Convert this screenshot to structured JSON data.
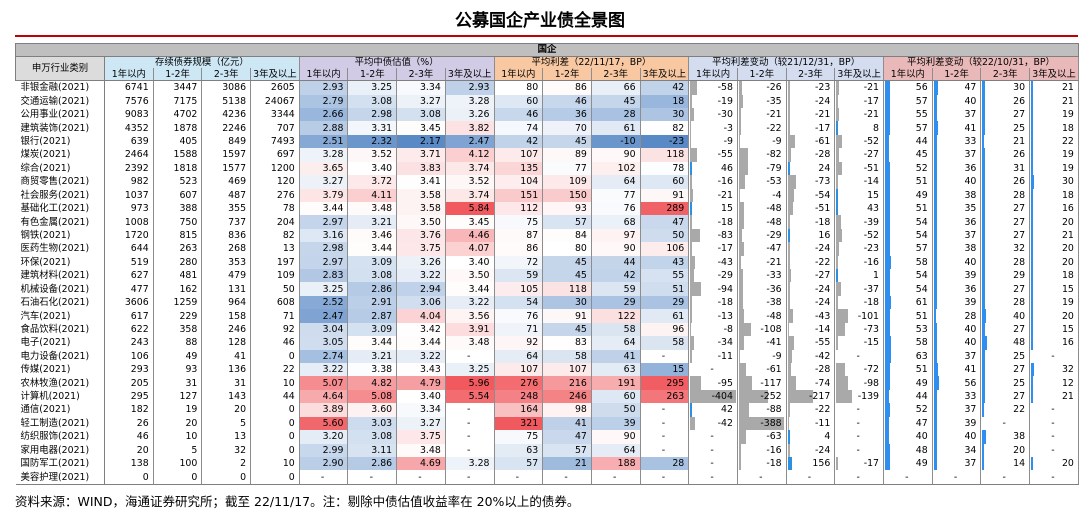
{
  "title": "公募国企产业债全景图",
  "band_label": "国企",
  "industry_header": "申万行业类别",
  "groups": [
    {
      "label": "存续债券规模（亿元）",
      "color": "#cde7f5"
    },
    {
      "label": "平均中债估值（%）",
      "color": "#d2cbe6"
    },
    {
      "label": "平均利差（22/11/17，BP）",
      "color": "#f8c8a2"
    },
    {
      "label": "平均利差变动（较21/12/31，BP）",
      "color": "#d3ddef"
    },
    {
      "label": "平均利差变动（较22/10/31，BP）",
      "color": "#e9b8b8"
    }
  ],
  "sub_headers": [
    "1年以内",
    "1-2年",
    "2-3年",
    "3年及以上"
  ],
  "rows": [
    {
      "name": "非银金融(2021)",
      "scale": [
        "6741",
        "3447",
        "3086",
        "2605"
      ],
      "val": [
        "2.93",
        "3.25",
        "3.34",
        "2.93"
      ],
      "spr": [
        "80",
        "86",
        "66",
        "42"
      ],
      "chg1": [
        "-58",
        "-26",
        "-23",
        "-21"
      ],
      "chg2": [
        "56",
        "47",
        "30",
        "21"
      ]
    },
    {
      "name": "交通运输(2021)",
      "scale": [
        "7576",
        "7175",
        "5138",
        "24067"
      ],
      "val": [
        "2.79",
        "3.08",
        "3.27",
        "3.28"
      ],
      "spr": [
        "60",
        "46",
        "45",
        "18"
      ],
      "chg1": [
        "-19",
        "-35",
        "-24",
        "-17"
      ],
      "chg2": [
        "57",
        "40",
        "26",
        "21"
      ]
    },
    {
      "name": "公用事业(2021)",
      "scale": [
        "9083",
        "4702",
        "4236",
        "3344"
      ],
      "val": [
        "2.66",
        "2.98",
        "3.08",
        "3.26"
      ],
      "spr": [
        "46",
        "36",
        "28",
        "30"
      ],
      "chg1": [
        "-30",
        "-21",
        "-21",
        "-21"
      ],
      "chg2": [
        "55",
        "37",
        "27",
        "19"
      ]
    },
    {
      "name": "建筑装饰(2021)",
      "scale": [
        "4352",
        "1878",
        "2246",
        "707"
      ],
      "val": [
        "2.88",
        "3.31",
        "3.45",
        "3.82"
      ],
      "spr": [
        "74",
        "70",
        "61",
        "82"
      ],
      "chg1": [
        "-3",
        "-22",
        "-17",
        "8"
      ],
      "chg2": [
        "57",
        "41",
        "25",
        "18"
      ]
    },
    {
      "name": "银行(2021)",
      "scale": [
        "639",
        "405",
        "849",
        "7493"
      ],
      "val": [
        "2.51",
        "2.32",
        "2.17",
        "2.47"
      ],
      "spr": [
        "42",
        "45",
        "-10",
        "-23"
      ],
      "chg1": [
        "-9",
        "-9",
        "-61",
        "-52"
      ],
      "chg2": [
        "44",
        "33",
        "21",
        "22"
      ]
    },
    {
      "name": "煤炭(2021)",
      "scale": [
        "2464",
        "1588",
        "1597",
        "697"
      ],
      "val": [
        "3.28",
        "3.52",
        "3.71",
        "4.12"
      ],
      "spr": [
        "107",
        "89",
        "90",
        "118"
      ],
      "chg1": [
        "-55",
        "-82",
        "-28",
        "-27"
      ],
      "chg2": [
        "45",
        "37",
        "26",
        "19"
      ]
    },
    {
      "name": "综合(2021)",
      "scale": [
        "2392",
        "1818",
        "1577",
        "1200"
      ],
      "val": [
        "3.65",
        "3.40",
        "3.83",
        "3.74"
      ],
      "spr": [
        "135",
        "77",
        "102",
        "78"
      ],
      "chg1": [
        "46",
        "-79",
        "24",
        "-51"
      ],
      "chg2": [
        "52",
        "36",
        "31",
        "19"
      ]
    },
    {
      "name": "商贸零售(2021)",
      "scale": [
        "982",
        "523",
        "469",
        "120"
      ],
      "val": [
        "3.27",
        "3.72",
        "3.41",
        "3.52"
      ],
      "spr": [
        "104",
        "109",
        "64",
        "60"
      ],
      "chg1": [
        "-16",
        "-53",
        "-73",
        "-14"
      ],
      "chg2": [
        "51",
        "40",
        "26",
        "30"
      ]
    },
    {
      "name": "社会服务(2021)",
      "scale": [
        "1037",
        "607",
        "487",
        "276"
      ],
      "val": [
        "3.79",
        "4.11",
        "3.58",
        "3.74"
      ],
      "spr": [
        "151",
        "150",
        "77",
        "91"
      ],
      "chg1": [
        "-21",
        "-4",
        "-54",
        "15"
      ],
      "chg2": [
        "49",
        "38",
        "28",
        "18"
      ]
    },
    {
      "name": "基础化工(2021)",
      "scale": [
        "973",
        "388",
        "355",
        "78"
      ],
      "val": [
        "3.44",
        "3.48",
        "3.58",
        "5.84"
      ],
      "spr": [
        "112",
        "93",
        "76",
        "289"
      ],
      "chg1": [
        "15",
        "-48",
        "-51",
        "43"
      ],
      "chg2": [
        "51",
        "35",
        "27",
        "16"
      ]
    },
    {
      "name": "有色金属(2021)",
      "scale": [
        "1008",
        "750",
        "737",
        "204"
      ],
      "val": [
        "2.97",
        "3.21",
        "3.50",
        "3.45"
      ],
      "spr": [
        "75",
        "57",
        "68",
        "47"
      ],
      "chg1": [
        "-18",
        "-48",
        "-18",
        "-39"
      ],
      "chg2": [
        "54",
        "36",
        "27",
        "20"
      ]
    },
    {
      "name": "钢铁(2021)",
      "scale": [
        "1720",
        "815",
        "836",
        "82"
      ],
      "val": [
        "3.16",
        "3.46",
        "3.76",
        "4.46"
      ],
      "spr": [
        "87",
        "84",
        "97",
        "50"
      ],
      "chg1": [
        "-83",
        "-29",
        "16",
        "-52"
      ],
      "chg2": [
        "54",
        "37",
        "27",
        "21"
      ]
    },
    {
      "name": "医药生物(2021)",
      "scale": [
        "644",
        "263",
        "268",
        "13"
      ],
      "val": [
        "2.98",
        "3.44",
        "3.75",
        "4.07"
      ],
      "spr": [
        "86",
        "80",
        "90",
        "106"
      ],
      "chg1": [
        "-17",
        "-47",
        "-24",
        "-23"
      ],
      "chg2": [
        "57",
        "38",
        "32",
        "20"
      ]
    },
    {
      "name": "环保(2021)",
      "scale": [
        "519",
        "280",
        "353",
        "197"
      ],
      "val": [
        "2.97",
        "3.09",
        "3.26",
        "3.40"
      ],
      "spr": [
        "72",
        "45",
        "44",
        "43"
      ],
      "chg1": [
        "-43",
        "-21",
        "-22",
        "-16"
      ],
      "chg2": [
        "58",
        "40",
        "28",
        "20"
      ]
    },
    {
      "name": "建筑材料(2021)",
      "scale": [
        "627",
        "481",
        "479",
        "109"
      ],
      "val": [
        "2.83",
        "3.08",
        "3.22",
        "3.50"
      ],
      "spr": [
        "59",
        "45",
        "42",
        "55"
      ],
      "chg1": [
        "-29",
        "-33",
        "-27",
        "1"
      ],
      "chg2": [
        "54",
        "39",
        "29",
        "18"
      ]
    },
    {
      "name": "机械设备(2021)",
      "scale": [
        "477",
        "162",
        "131",
        "50"
      ],
      "val": [
        "3.25",
        "2.86",
        "2.94",
        "3.44"
      ],
      "spr": [
        "105",
        "118",
        "59",
        "51"
      ],
      "chg1": [
        "-94",
        "-36",
        "-24",
        "-37"
      ],
      "chg2": [
        "54",
        "36",
        "27",
        "15"
      ]
    },
    {
      "name": "石油石化(2021)",
      "scale": [
        "3606",
        "1259",
        "964",
        "608"
      ],
      "val": [
        "2.52",
        "2.91",
        "3.06",
        "3.22"
      ],
      "spr": [
        "54",
        "30",
        "29",
        "29"
      ],
      "chg1": [
        "-18",
        "-38",
        "-24",
        "-18"
      ],
      "chg2": [
        "61",
        "39",
        "28",
        "19"
      ]
    },
    {
      "name": "汽车(2021)",
      "scale": [
        "617",
        "229",
        "158",
        "71"
      ],
      "val": [
        "2.47",
        "2.87",
        "4.04",
        "3.56"
      ],
      "spr": [
        "76",
        "91",
        "122",
        "61"
      ],
      "chg1": [
        "-13",
        "-48",
        "-43",
        "-101"
      ],
      "chg2": [
        "51",
        "28",
        "40",
        "20"
      ]
    },
    {
      "name": "食品饮料(2021)",
      "scale": [
        "622",
        "358",
        "246",
        "92"
      ],
      "val": [
        "3.04",
        "3.09",
        "3.42",
        "3.91"
      ],
      "spr": [
        "71",
        "45",
        "58",
        "96"
      ],
      "chg1": [
        "-8",
        "-108",
        "-14",
        "-73"
      ],
      "chg2": [
        "53",
        "40",
        "27",
        "15"
      ]
    },
    {
      "name": "电子(2021)",
      "scale": [
        "243",
        "88",
        "128",
        "46"
      ],
      "val": [
        "3.05",
        "3.44",
        "3.44",
        "3.48"
      ],
      "spr": [
        "92",
        "83",
        "64",
        "58"
      ],
      "chg1": [
        "-34",
        "-41",
        "-55",
        "-15"
      ],
      "chg2": [
        "58",
        "40",
        "48",
        "16"
      ]
    },
    {
      "name": "电力设备(2021)",
      "scale": [
        "106",
        "49",
        "41",
        "0"
      ],
      "val": [
        "2.74",
        "3.21",
        "3.22",
        "-"
      ],
      "spr": [
        "64",
        "58",
        "41",
        "-"
      ],
      "chg1": [
        "-11",
        "-9",
        "-42",
        "-"
      ],
      "chg2": [
        "63",
        "37",
        "25",
        "-"
      ]
    },
    {
      "name": "传媒(2021)",
      "scale": [
        "293",
        "93",
        "136",
        "22"
      ],
      "val": [
        "3.22",
        "3.38",
        "3.43",
        "3.25"
      ],
      "spr": [
        "107",
        "107",
        "63",
        "15"
      ],
      "chg1": [
        "-",
        "-61",
        "-28",
        "-72"
      ],
      "chg2": [
        "51",
        "41",
        "27",
        "32"
      ]
    },
    {
      "name": "农林牧渔(2021)",
      "scale": [
        "205",
        "31",
        "31",
        "10"
      ],
      "val": [
        "5.07",
        "4.82",
        "4.79",
        "5.96"
      ],
      "spr": [
        "276",
        "216",
        "191",
        "295"
      ],
      "chg1": [
        "-95",
        "-117",
        "-74",
        "-98"
      ],
      "chg2": [
        "49",
        "56",
        "25",
        "12"
      ]
    },
    {
      "name": "计算机(2021)",
      "scale": [
        "295",
        "127",
        "143",
        "44"
      ],
      "val": [
        "4.64",
        "5.08",
        "3.40",
        "5.54"
      ],
      "spr": [
        "248",
        "246",
        "60",
        "263"
      ],
      "chg1": [
        "-404",
        "-252",
        "-217",
        "-139"
      ],
      "chg2": [
        "44",
        "33",
        "27",
        "21"
      ]
    },
    {
      "name": "通信(2021)",
      "scale": [
        "182",
        "19",
        "20",
        "0"
      ],
      "val": [
        "3.89",
        "3.60",
        "3.34",
        "-"
      ],
      "spr": [
        "164",
        "98",
        "50",
        "-"
      ],
      "chg1": [
        "42",
        "-88",
        "-22",
        "-"
      ],
      "chg2": [
        "52",
        "37",
        "22",
        "-"
      ]
    },
    {
      "name": "轻工制造(2021)",
      "scale": [
        "26",
        "20",
        "5",
        "0"
      ],
      "val": [
        "5.60",
        "3.03",
        "3.27",
        "-"
      ],
      "spr": [
        "321",
        "41",
        "39",
        "-"
      ],
      "chg1": [
        "-42",
        "-388",
        "-11",
        "-"
      ],
      "chg2": [
        "47",
        "39",
        "-",
        "-"
      ]
    },
    {
      "name": "纺织服饰(2021)",
      "scale": [
        "46",
        "10",
        "13",
        "0"
      ],
      "val": [
        "3.20",
        "3.08",
        "3.75",
        "-"
      ],
      "spr": [
        "75",
        "47",
        "90",
        "-"
      ],
      "chg1": [
        "-",
        "-63",
        "4",
        "-"
      ],
      "chg2": [
        "40",
        "40",
        "38",
        "-"
      ]
    },
    {
      "name": "家用电器(2021)",
      "scale": [
        "20",
        "5",
        "32",
        "0"
      ],
      "val": [
        "2.99",
        "3.11",
        "3.48",
        "-"
      ],
      "spr": [
        "63",
        "57",
        "64",
        "-"
      ],
      "chg1": [
        "-",
        "-16",
        "-24",
        "-"
      ],
      "chg2": [
        "48",
        "34",
        "20",
        "-"
      ]
    },
    {
      "name": "国防军工(2021)",
      "scale": [
        "138",
        "100",
        "2",
        "10"
      ],
      "val": [
        "2.90",
        "2.86",
        "4.69",
        "3.28"
      ],
      "spr": [
        "57",
        "21",
        "188",
        "28"
      ],
      "chg1": [
        "-",
        "-18",
        "156",
        "-17"
      ],
      "chg2": [
        "49",
        "37",
        "14",
        "20"
      ]
    },
    {
      "name": "美容护理(2021)",
      "scale": [
        "0",
        "0",
        "0",
        "0"
      ],
      "val": [
        "-",
        "-",
        "-",
        "-"
      ],
      "spr": [
        "-",
        "-",
        "-",
        "-"
      ],
      "chg1": [
        "-",
        "-",
        "-",
        "-"
      ],
      "chg2": [
        "-",
        "-",
        "-",
        "-"
      ]
    }
  ],
  "source_note": "资料来源：WIND，海通证券研究所；截至 22/11/17。注：剔除中债估值收益率在 20%以上的债券。"
}
